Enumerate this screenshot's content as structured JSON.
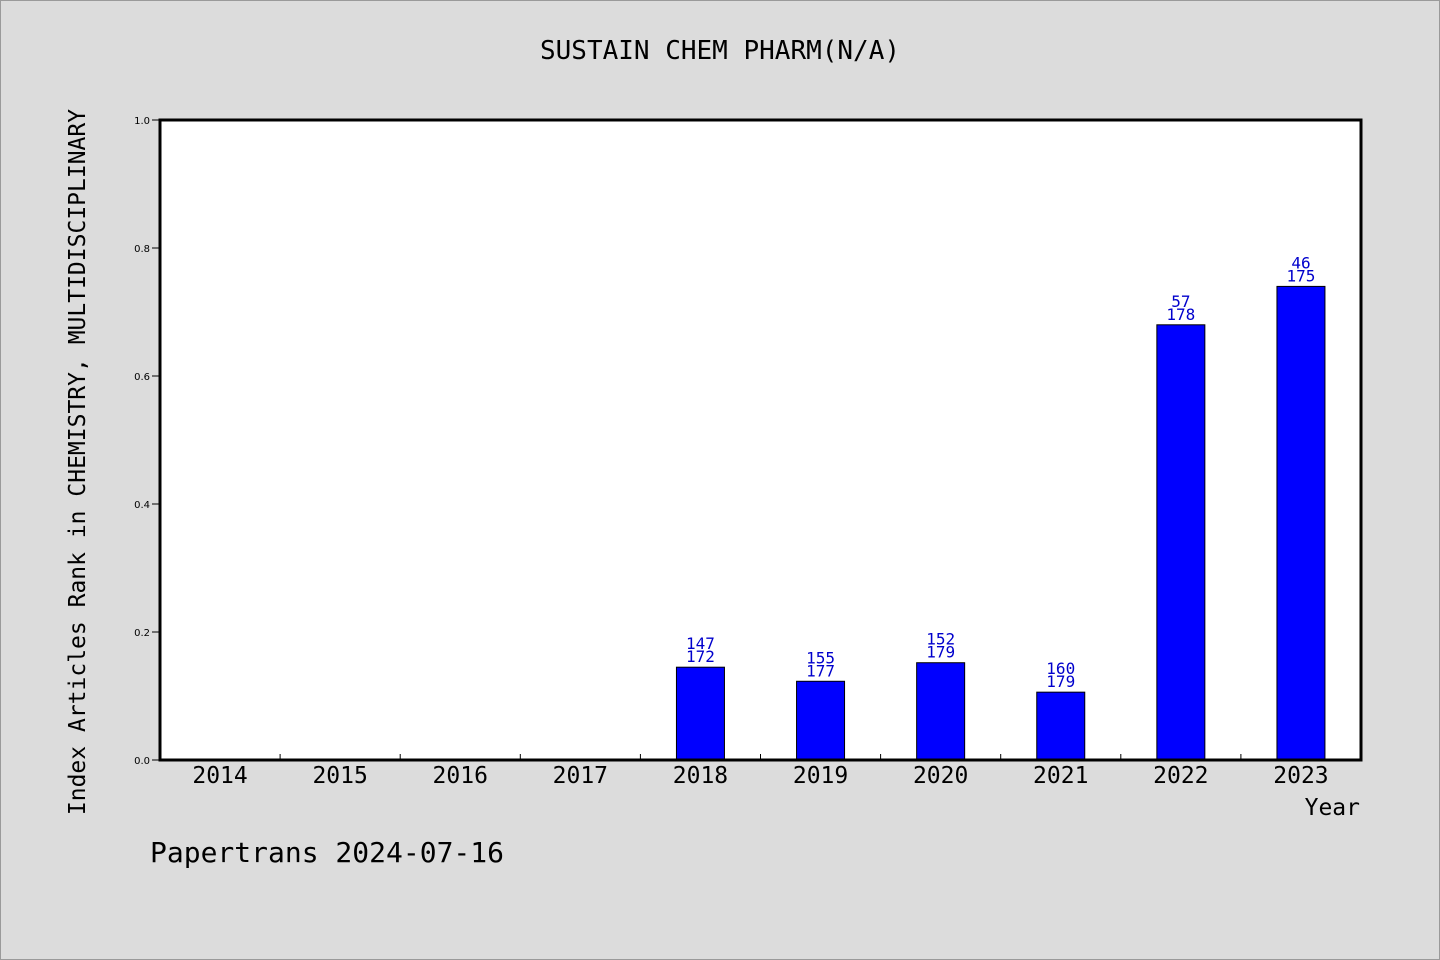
{
  "footer": "Papertrans 2024-07-16",
  "chart_data": {
    "type": "bar",
    "title": "SUSTAIN CHEM PHARM(N/A)",
    "xlabel": "Year",
    "ylabel": "Index Articles Rank in CHEMISTRY, MULTIDISCIPLINARY",
    "ylim": [
      0,
      1.0
    ],
    "yticks": [
      "0.0",
      "0.2",
      "0.4",
      "0.6",
      "0.8",
      "1.0"
    ],
    "grid": false,
    "categories": [
      "2014",
      "2015",
      "2016",
      "2017",
      "2018",
      "2019",
      "2020",
      "2021",
      "2022",
      "2023"
    ],
    "values": [
      null,
      null,
      null,
      null,
      0.145,
      0.123,
      0.152,
      0.106,
      0.68,
      0.74
    ],
    "bar_labels": [
      null,
      null,
      null,
      null,
      [
        "147",
        "172"
      ],
      [
        "155",
        "177"
      ],
      [
        "152",
        "179"
      ],
      [
        "160",
        "179"
      ],
      [
        "57",
        "178"
      ],
      [
        "46",
        "175"
      ]
    ],
    "bar_color": "#0000ff",
    "label_color": "#0000cc"
  }
}
